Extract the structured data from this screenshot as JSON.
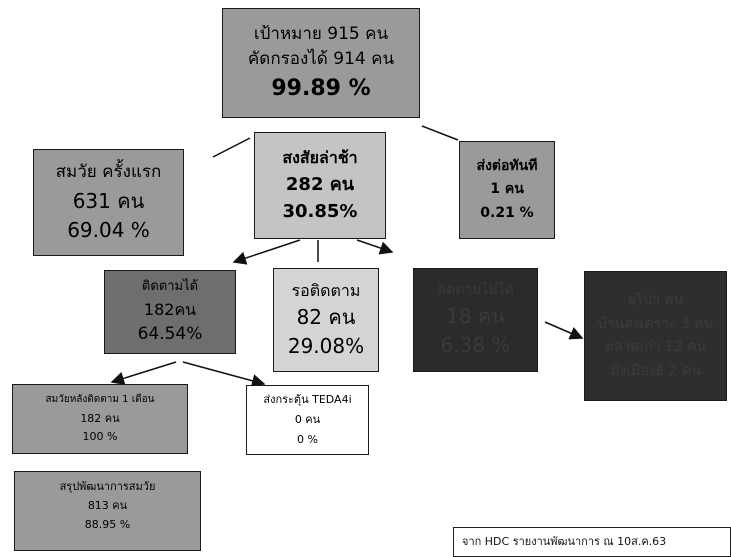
{
  "target": {
    "line1": "เป้าหมาย  915 คน",
    "line2": "คัดกรองได้ 914 คน",
    "line3": "99.89 %"
  },
  "first_time": {
    "line1": "สมวัย ครั้งแรก",
    "line2": "631  คน",
    "line3": "69.04 %"
  },
  "suspected_delay": {
    "line1": "สงสัยล่าช้า",
    "line2": "282 คน",
    "line3": "30.85%"
  },
  "refer_now": {
    "line1": "ส่งต่อทันที",
    "line2": "1 คน",
    "line3": "0.21 %"
  },
  "followed": {
    "line1": "ติดตามได้",
    "line2": "182คน",
    "line3": "64.54%"
  },
  "waiting_follow": {
    "line1": "รอติดตาม",
    "line2": "82 คน",
    "line3": "29.08%"
  },
  "not_followed": {
    "line1": "ติดตามไม่ได้",
    "line2": "18 คน",
    "line3": "6.38 %"
  },
  "relocated": {
    "line1": "ยุไปฯ คน",
    "line2": "บ้านสงเคราะ 3 คน",
    "line3": "ตลาดเก่า 12 คน",
    "line4": "มังเมืองธิ 2 คน"
  },
  "after_follow": {
    "line1": "สมวัยหลังติดตาม 1 เดือน",
    "line2": "182 คน",
    "line3": "100  %"
  },
  "teda4i": {
    "line1": "ส่งกระตุ้น TEDA4i",
    "line2": "0 คน",
    "line3": "0 %"
  },
  "summary": {
    "line1": "สรุปพัฒนาการสมวัย",
    "line2": "813 คน",
    "line3": "88.95 %"
  },
  "footnote": "จาก HDC รายงานพัฒนาการ ณ 10ส.ค.63",
  "colors": {
    "gray_mid": "#9a9a9a",
    "gray_light": "#c4c4c4",
    "gray_dark": "#6e6e6e",
    "near_black": "#2b2b2b",
    "white": "#ffffff"
  }
}
